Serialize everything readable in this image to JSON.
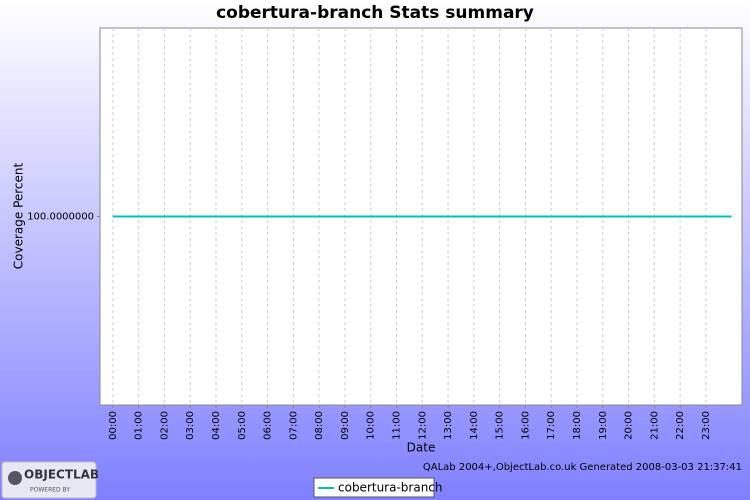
{
  "chart_data": {
    "type": "line",
    "title": "cobertura-branch  Stats summary",
    "x_label": "Date",
    "y_label": "Coverage Percent",
    "x": [
      0,
      24
    ],
    "series": [
      {
        "name": "cobertura-branch",
        "color": "#00c0c0",
        "values": [
          100,
          100
        ]
      }
    ],
    "xlim": [
      -0.5,
      24.4
    ],
    "xticks": [
      {
        "value": 0,
        "label": "00:00"
      },
      {
        "value": 1,
        "label": "01:00"
      },
      {
        "value": 2,
        "label": "02:00"
      },
      {
        "value": 3,
        "label": "03:00"
      },
      {
        "value": 4,
        "label": "04:00"
      },
      {
        "value": 5,
        "label": "05:00"
      },
      {
        "value": 6,
        "label": "06:00"
      },
      {
        "value": 7,
        "label": "07:00"
      },
      {
        "value": 8,
        "label": "08:00"
      },
      {
        "value": 9,
        "label": "09:00"
      },
      {
        "value": 10,
        "label": "10:00"
      },
      {
        "value": 11,
        "label": "11:00"
      },
      {
        "value": 12,
        "label": "12:00"
      },
      {
        "value": 13,
        "label": "13:00"
      },
      {
        "value": 14,
        "label": "14:00"
      },
      {
        "value": 15,
        "label": "15:00"
      },
      {
        "value": 16,
        "label": "16:00"
      },
      {
        "value": 17,
        "label": "17:00"
      },
      {
        "value": 18,
        "label": "18:00"
      },
      {
        "value": 19,
        "label": "19:00"
      },
      {
        "value": 20,
        "label": "20:00"
      },
      {
        "value": 21,
        "label": "21:00"
      },
      {
        "value": 22,
        "label": "22:00"
      },
      {
        "value": 23,
        "label": "23:00"
      }
    ],
    "ylim": [
      99.5,
      100.5
    ],
    "yticks": [
      {
        "value": 100,
        "label": "100.0000000"
      }
    ],
    "grid": true
  },
  "footer": "QALab 2004+,ObjectLab.co.uk  Generated 2008-03-03 21:37:41",
  "logo": {
    "name": "OBJECTLAB",
    "tagline": "POWERED BY"
  }
}
